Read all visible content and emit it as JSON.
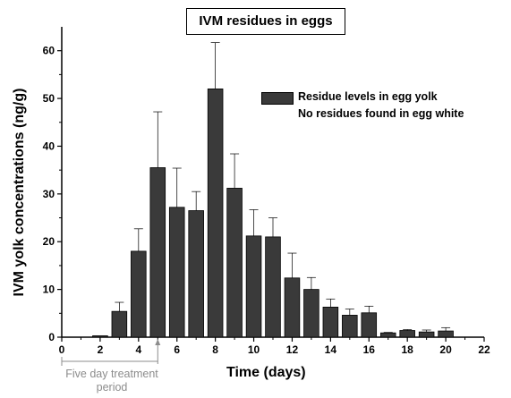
{
  "chart_data": {
    "type": "bar",
    "title": "IVM residues in eggs",
    "xlabel": "Time (days)",
    "ylabel": "IVM yolk concentrations (ng/g)",
    "xlim": [
      0,
      22
    ],
    "ylim": [
      0,
      65
    ],
    "x_ticks": [
      0,
      2,
      4,
      6,
      8,
      10,
      12,
      14,
      16,
      18,
      20,
      22
    ],
    "y_ticks": [
      0,
      10,
      20,
      30,
      40,
      50,
      60
    ],
    "series": [
      {
        "name": "Residue levels in egg yolk",
        "color": "#3a3a3a",
        "x": [
          2,
          3,
          4,
          5,
          6,
          7,
          8,
          9,
          10,
          11,
          12,
          13,
          14,
          15,
          16,
          17,
          18,
          19,
          20
        ],
        "values": [
          0.3,
          5.4,
          18.0,
          35.5,
          27.2,
          26.5,
          52.0,
          31.2,
          21.2,
          21.0,
          12.4,
          10.0,
          6.3,
          4.6,
          5.1,
          0.9,
          1.4,
          1.1,
          1.3
        ],
        "error_upper": [
          0.3,
          7.3,
          22.7,
          47.2,
          35.4,
          30.5,
          61.7,
          38.4,
          26.7,
          25.0,
          17.6,
          12.5,
          8.0,
          5.9,
          6.5,
          1.0,
          1.6,
          1.5,
          2.0
        ]
      }
    ],
    "legend_note": "No residues found in egg white",
    "annotation": {
      "line1": "Five day treatment",
      "line2": "period",
      "x_start": 0,
      "x_end": 5,
      "color": "#8c8c8c"
    }
  }
}
